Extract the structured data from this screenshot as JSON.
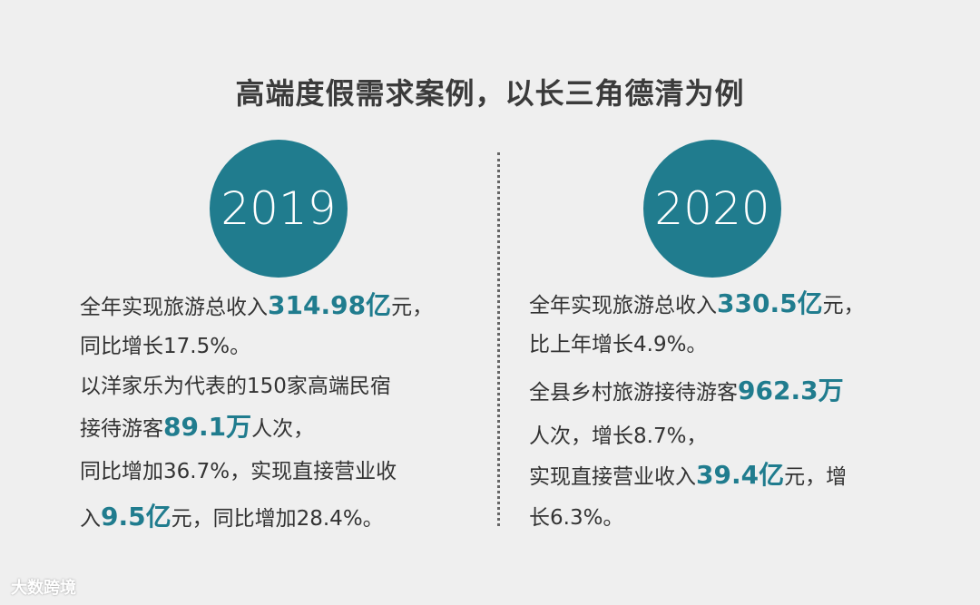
{
  "title": "高端度假需求案例，以长三角德清为例",
  "columns": [
    {
      "year": "2019",
      "lines": [
        [
          {
            "text": "全年实现旅游总收入",
            "bold": false
          },
          {
            "text": "314.98亿",
            "bold": true
          },
          {
            "text": "元，",
            "bold": false
          }
        ],
        [
          {
            "text": "同比增长17.5%。",
            "bold": false
          }
        ],
        [
          {
            "text": "以洋家乐为代表的150家高端民宿",
            "bold": false
          }
        ],
        [
          {
            "text": "接待游客",
            "bold": false
          },
          {
            "text": "89.1万",
            "bold": true
          },
          {
            "text": "人次，",
            "bold": false
          }
        ],
        [
          {
            "text": "同比增加36.7%，实现直接营业收",
            "bold": false
          }
        ],
        [
          {
            "text": "入",
            "bold": false
          },
          {
            "text": "9.5亿",
            "bold": true
          },
          {
            "text": "元，同比增加28.4%。",
            "bold": false
          }
        ]
      ]
    },
    {
      "year": "2020",
      "lines": [
        [
          {
            "text": "全年实现旅游总收入",
            "bold": false
          },
          {
            "text": "330.5亿",
            "bold": true
          },
          {
            "text": "元，",
            "bold": false
          }
        ],
        [
          {
            "text": "比上年增长4.9%。",
            "bold": false
          }
        ],
        [
          {
            "text": "全县乡村旅游接待游客",
            "bold": false
          },
          {
            "text": "962.3万",
            "bold": true
          }
        ],
        [
          {
            "text": "人次，增长8.7%，",
            "bold": false
          }
        ],
        [
          {
            "text": "实现直接营业收入",
            "bold": false
          },
          {
            "text": "39.4亿",
            "bold": true
          },
          {
            "text": "元，增",
            "bold": false
          }
        ],
        [
          {
            "text": "长6.3%。",
            "bold": false
          }
        ]
      ]
    }
  ],
  "watermark": "大数跨境"
}
